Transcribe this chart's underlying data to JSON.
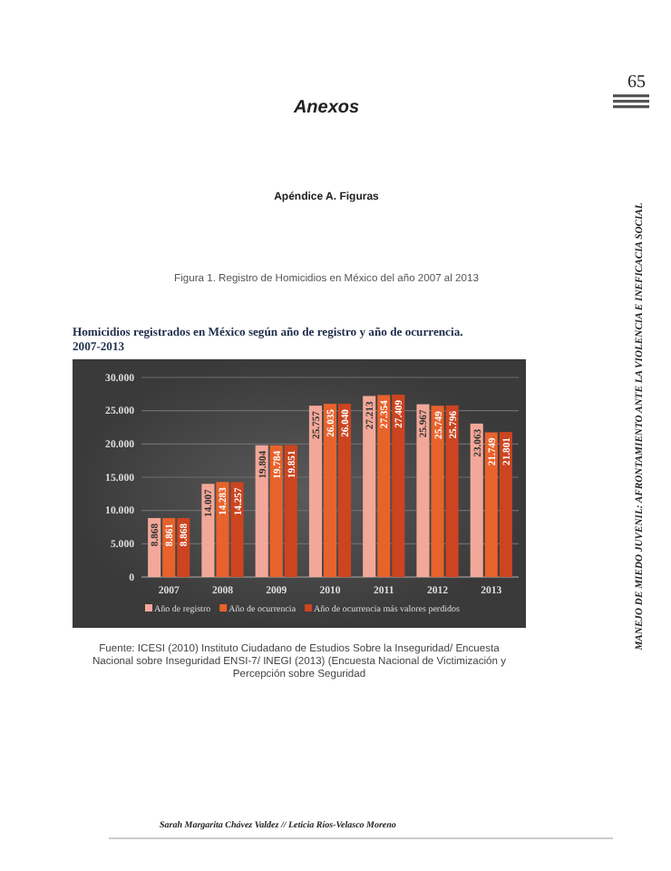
{
  "chart_data": {
    "type": "bar",
    "title": "Homicidios registrados en México según año de registro y año de ocurrencia. 2007-2013",
    "categories": [
      "2007",
      "2008",
      "2009",
      "2010",
      "2011",
      "2012",
      "2013"
    ],
    "series": [
      {
        "name": "Año de registro",
        "color": "#f2a899",
        "values": [
          8868,
          14007,
          19804,
          25757,
          27213,
          25967,
          23063
        ],
        "value_labels": [
          "8.868",
          "14.007",
          "19.804",
          "25.757",
          "27.213",
          "25.967",
          "23.063"
        ]
      },
      {
        "name": "Año de ocurrencia",
        "color": "#e8622c",
        "values": [
          8861,
          14283,
          19784,
          26035,
          27354,
          25749,
          21749
        ],
        "value_labels": [
          "8.861",
          "14.283",
          "19.784",
          "26.035",
          "27.354",
          "25.749",
          "21.749"
        ]
      },
      {
        "name": "Año de ocurrencia más valores perdidos",
        "color": "#cc4420",
        "values": [
          8868,
          14257,
          19851,
          26040,
          27409,
          25796,
          21801
        ],
        "value_labels": [
          "8.868",
          "14.257",
          "19.851",
          "26.040",
          "27.409",
          "25.796",
          "21.801"
        ]
      }
    ],
    "ylim": [
      0,
      30000
    ],
    "yticks": [
      {
        "value": 0,
        "label": "0"
      },
      {
        "value": 5000,
        "label": "5.000"
      },
      {
        "value": 10000,
        "label": "10.000"
      },
      {
        "value": 15000,
        "label": "15.000"
      },
      {
        "value": 20000,
        "label": "20.000"
      },
      {
        "value": 25000,
        "label": "25.000"
      },
      {
        "value": 30000,
        "label": "30.000"
      }
    ],
    "grid": "y",
    "legend": "bottom",
    "annotations": [
      "65",
      "Anexos",
      "Apéndice A. Figuras",
      "Figura 1. Registro de Homicidios en México del año 2007 al 2013",
      "Fuente: ICESI (2010) Instituto Ciudadano de Estudios Sobre la Inseguridad/ Encuesta Nacional sobre Inseguridad ENSI-7/ INEGI (2013) (Encuesta Nacional de Victimización y Percepción sobre Seguridad",
      "Sarah Margarita Chávez Valdez // Leticia Ríos-Velasco Moreno",
      "MANEJO DE MIEDO JUVENIL: AFRONTAMIENTO ANTE LA VIOLENCIA E INEFICACIA SOCIAL"
    ]
  }
}
